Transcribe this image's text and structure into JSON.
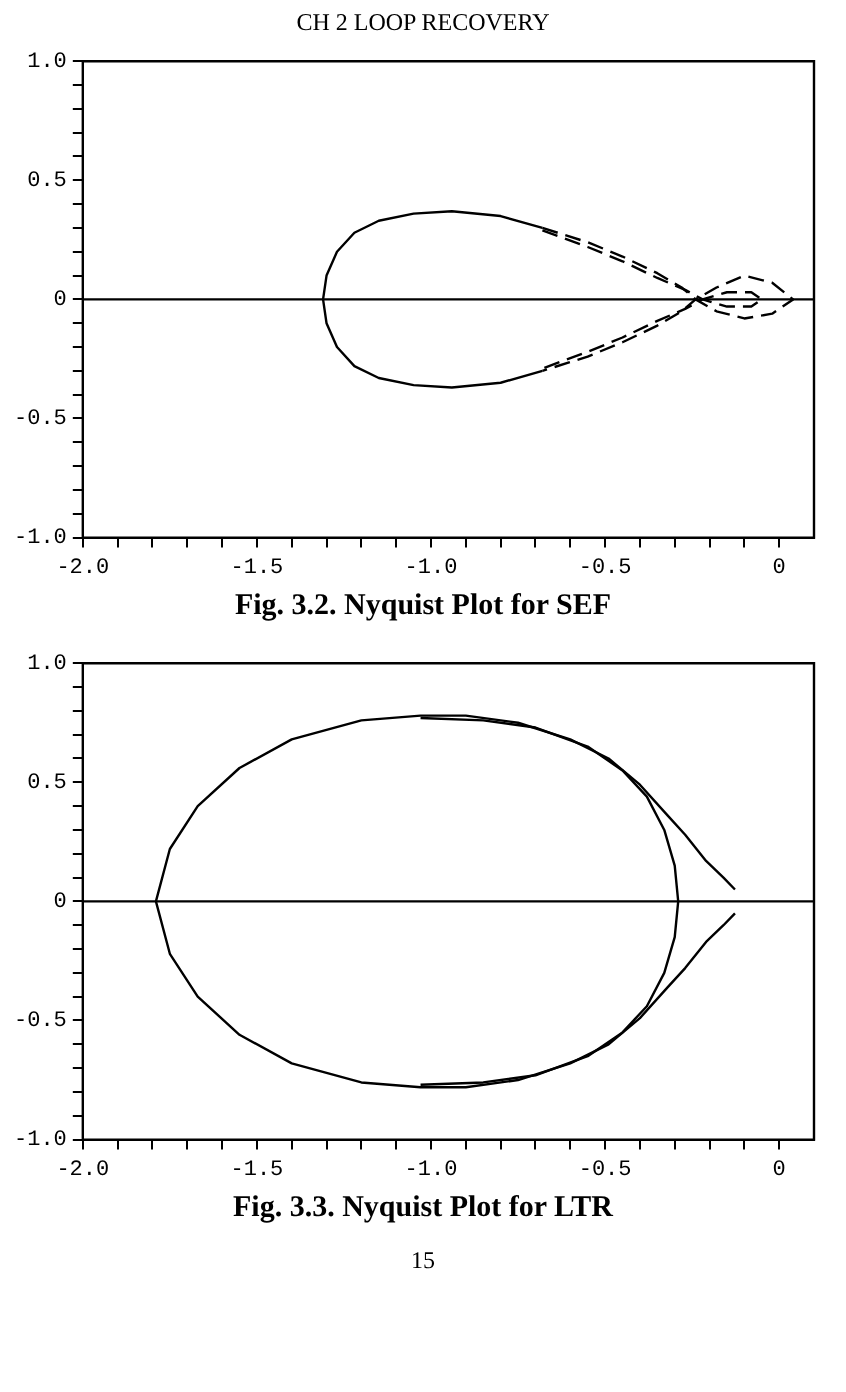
{
  "chart_data": [
    {
      "type": "line",
      "title": "Fig. 3.2. Nyquist Plot for SEF",
      "annotations": [
        "CH 2 LOOP RECOVERY"
      ],
      "xlim": [
        -2,
        0.1
      ],
      "ylim": [
        -1,
        1
      ],
      "xticks": [
        {
          "value": -2,
          "label": "-2.0"
        },
        {
          "value": -1.9,
          "label": null
        },
        {
          "value": -1.8,
          "label": null
        },
        {
          "value": -1.7,
          "label": null
        },
        {
          "value": -1.6,
          "label": null
        },
        {
          "value": -1.5,
          "label": "-1.5"
        },
        {
          "value": -1.4,
          "label": null
        },
        {
          "value": -1.3,
          "label": null
        },
        {
          "value": -1.2,
          "label": null
        },
        {
          "value": -1.1,
          "label": null
        },
        {
          "value": -1,
          "label": "-1.0"
        },
        {
          "value": -0.9,
          "label": null
        },
        {
          "value": -0.8,
          "label": null
        },
        {
          "value": -0.7,
          "label": null
        },
        {
          "value": -0.6,
          "label": null
        },
        {
          "value": -0.5,
          "label": "-0.5"
        },
        {
          "value": -0.4,
          "label": null
        },
        {
          "value": -0.3,
          "label": null
        },
        {
          "value": -0.2,
          "label": null
        },
        {
          "value": -0.1,
          "label": null
        },
        0
      ],
      "yticks": [
        {
          "value": -1,
          "label": "-1.0"
        },
        {
          "value": -0.9,
          "label": null
        },
        {
          "value": -0.8,
          "label": null
        },
        {
          "value": -0.7,
          "label": null
        },
        {
          "value": -0.6,
          "label": null
        },
        -0.5,
        {
          "value": -0.4,
          "label": null
        },
        {
          "value": -0.3,
          "label": null
        },
        {
          "value": -0.2,
          "label": null
        },
        {
          "value": -0.1,
          "label": null
        },
        0,
        {
          "value": 0.1,
          "label": null
        },
        {
          "value": 0.2,
          "label": null
        },
        {
          "value": 0.3,
          "label": null
        },
        {
          "value": 0.4,
          "label": null
        },
        0.5,
        {
          "value": 0.6,
          "label": null
        },
        {
          "value": 0.7,
          "label": null
        },
        {
          "value": 0.8,
          "label": null
        },
        {
          "value": 0.9,
          "label": null
        },
        {
          "value": 1,
          "label": "1.0"
        }
      ],
      "grid": false,
      "legend": false,
      "marker": "none",
      "ref_lines": [
        {
          "axis": "y",
          "value": 0,
          "color": "#000000"
        }
      ],
      "series": [
        {
          "color": "#000000",
          "line_style": "solid",
          "x": [
            -0.68,
            -0.8,
            -0.94,
            -1.05,
            -1.15,
            -1.22,
            -1.27,
            -1.3,
            -1.31,
            -1.3,
            -1.27,
            -1.22,
            -1.15,
            -1.05,
            -0.94,
            -0.8,
            -0.68
          ],
          "values": [
            0.3,
            0.35,
            0.37,
            0.36,
            0.33,
            0.28,
            0.2,
            0.1,
            0,
            -0.1,
            -0.2,
            -0.28,
            -0.33,
            -0.36,
            -0.37,
            -0.35,
            -0.3
          ]
        },
        {
          "color": "#000000",
          "line_style": "dashed",
          "x": [
            -0.68,
            -0.55,
            -0.45,
            -0.35,
            -0.28,
            -0.24,
            -0.18,
            -0.1,
            -0.02,
            0.04,
            -0.02,
            -0.1,
            -0.18,
            -0.24,
            -0.28,
            -0.35,
            -0.45,
            -0.55,
            -0.68
          ],
          "values": [
            0.3,
            0.24,
            0.18,
            0.11,
            0.05,
            0,
            -0.05,
            -0.08,
            -0.06,
            0,
            0.07,
            0.1,
            0.05,
            0,
            -0.05,
            -0.11,
            -0.18,
            -0.24,
            -0.3
          ]
        },
        {
          "color": "#000000",
          "line_style": "dashed",
          "x": [
            -0.68,
            -0.55,
            -0.45,
            -0.35,
            -0.27,
            -0.22,
            -0.15,
            -0.08,
            -0.05,
            -0.08,
            -0.15,
            -0.22,
            -0.27,
            -0.35,
            -0.45,
            -0.55,
            -0.68
          ],
          "values": [
            0.29,
            0.22,
            0.16,
            0.09,
            0.04,
            0,
            -0.03,
            -0.03,
            0,
            0.03,
            0.03,
            0,
            -0.04,
            -0.09,
            -0.16,
            -0.22,
            -0.29
          ]
        }
      ]
    },
    {
      "type": "line",
      "title": "Fig. 3.3. Nyquist Plot for LTR",
      "annotations": [
        "15"
      ],
      "xlim": [
        -2,
        0.1
      ],
      "ylim": [
        -1,
        1
      ],
      "xticks": [
        {
          "value": -2,
          "label": "-2.0"
        },
        {
          "value": -1.9,
          "label": null
        },
        {
          "value": -1.8,
          "label": null
        },
        {
          "value": -1.7,
          "label": null
        },
        {
          "value": -1.6,
          "label": null
        },
        {
          "value": -1.5,
          "label": "-1.5"
        },
        {
          "value": -1.4,
          "label": null
        },
        {
          "value": -1.3,
          "label": null
        },
        {
          "value": -1.2,
          "label": null
        },
        {
          "value": -1.1,
          "label": null
        },
        {
          "value": -1,
          "label": "-1.0"
        },
        {
          "value": -0.9,
          "label": null
        },
        {
          "value": -0.8,
          "label": null
        },
        {
          "value": -0.7,
          "label": null
        },
        {
          "value": -0.6,
          "label": null
        },
        {
          "value": -0.5,
          "label": "-0.5"
        },
        {
          "value": -0.4,
          "label": null
        },
        {
          "value": -0.3,
          "label": null
        },
        {
          "value": -0.2,
          "label": null
        },
        {
          "value": -0.1,
          "label": null
        },
        0
      ],
      "yticks": [
        {
          "value": -1,
          "label": "-1.0"
        },
        {
          "value": -0.9,
          "label": null
        },
        {
          "value": -0.8,
          "label": null
        },
        {
          "value": -0.7,
          "label": null
        },
        {
          "value": -0.6,
          "label": null
        },
        -0.5,
        {
          "value": -0.4,
          "label": null
        },
        {
          "value": -0.3,
          "label": null
        },
        {
          "value": -0.2,
          "label": null
        },
        {
          "value": -0.1,
          "label": null
        },
        0,
        {
          "value": 0.1,
          "label": null
        },
        {
          "value": 0.2,
          "label": null
        },
        {
          "value": 0.3,
          "label": null
        },
        {
          "value": 0.4,
          "label": null
        },
        0.5,
        {
          "value": 0.6,
          "label": null
        },
        {
          "value": 0.7,
          "label": null
        },
        {
          "value": 0.8,
          "label": null
        },
        {
          "value": 0.9,
          "label": null
        },
        {
          "value": 1,
          "label": "1.0"
        }
      ],
      "grid": false,
      "legend": false,
      "marker": "none",
      "ref_lines": [
        {
          "axis": "y",
          "value": 0,
          "color": "#000000"
        }
      ],
      "series": [
        {
          "color": "#000000",
          "line_style": "solid",
          "x": [
            -0.127,
            -0.16,
            -0.21,
            -0.27,
            -0.32,
            -0.4,
            -0.49,
            -0.6,
            -0.75,
            -0.9,
            -1.03,
            -1.2,
            -1.4,
            -1.55,
            -1.67,
            -1.75,
            -1.79,
            -1.75,
            -1.67,
            -1.55,
            -1.4,
            -1.2,
            -1.03,
            -0.9,
            -0.75,
            -0.6,
            -0.49,
            -0.4,
            -0.32,
            -0.27,
            -0.21,
            -0.16,
            -0.127
          ],
          "values": [
            0.05,
            0.1,
            0.17,
            0.28,
            0.36,
            0.49,
            0.6,
            0.68,
            0.75,
            0.78,
            0.78,
            0.76,
            0.68,
            0.56,
            0.4,
            0.22,
            0,
            -0.22,
            -0.4,
            -0.56,
            -0.68,
            -0.76,
            -0.78,
            -0.78,
            -0.75,
            -0.68,
            -0.6,
            -0.49,
            -0.36,
            -0.28,
            -0.17,
            -0.1,
            -0.05
          ]
        },
        {
          "color": "#000000",
          "line_style": "solid",
          "x": [
            -1.03,
            -0.85,
            -0.7,
            -0.55,
            -0.45,
            -0.38,
            -0.33,
            -0.3,
            -0.29,
            -0.3,
            -0.33,
            -0.38,
            -0.45,
            -0.55,
            -0.7,
            -0.85,
            -1.03
          ],
          "values": [
            0.77,
            0.76,
            0.73,
            0.65,
            0.55,
            0.44,
            0.3,
            0.15,
            0,
            -0.15,
            -0.3,
            -0.44,
            -0.55,
            -0.65,
            -0.73,
            -0.76,
            -0.77
          ]
        }
      ]
    }
  ]
}
